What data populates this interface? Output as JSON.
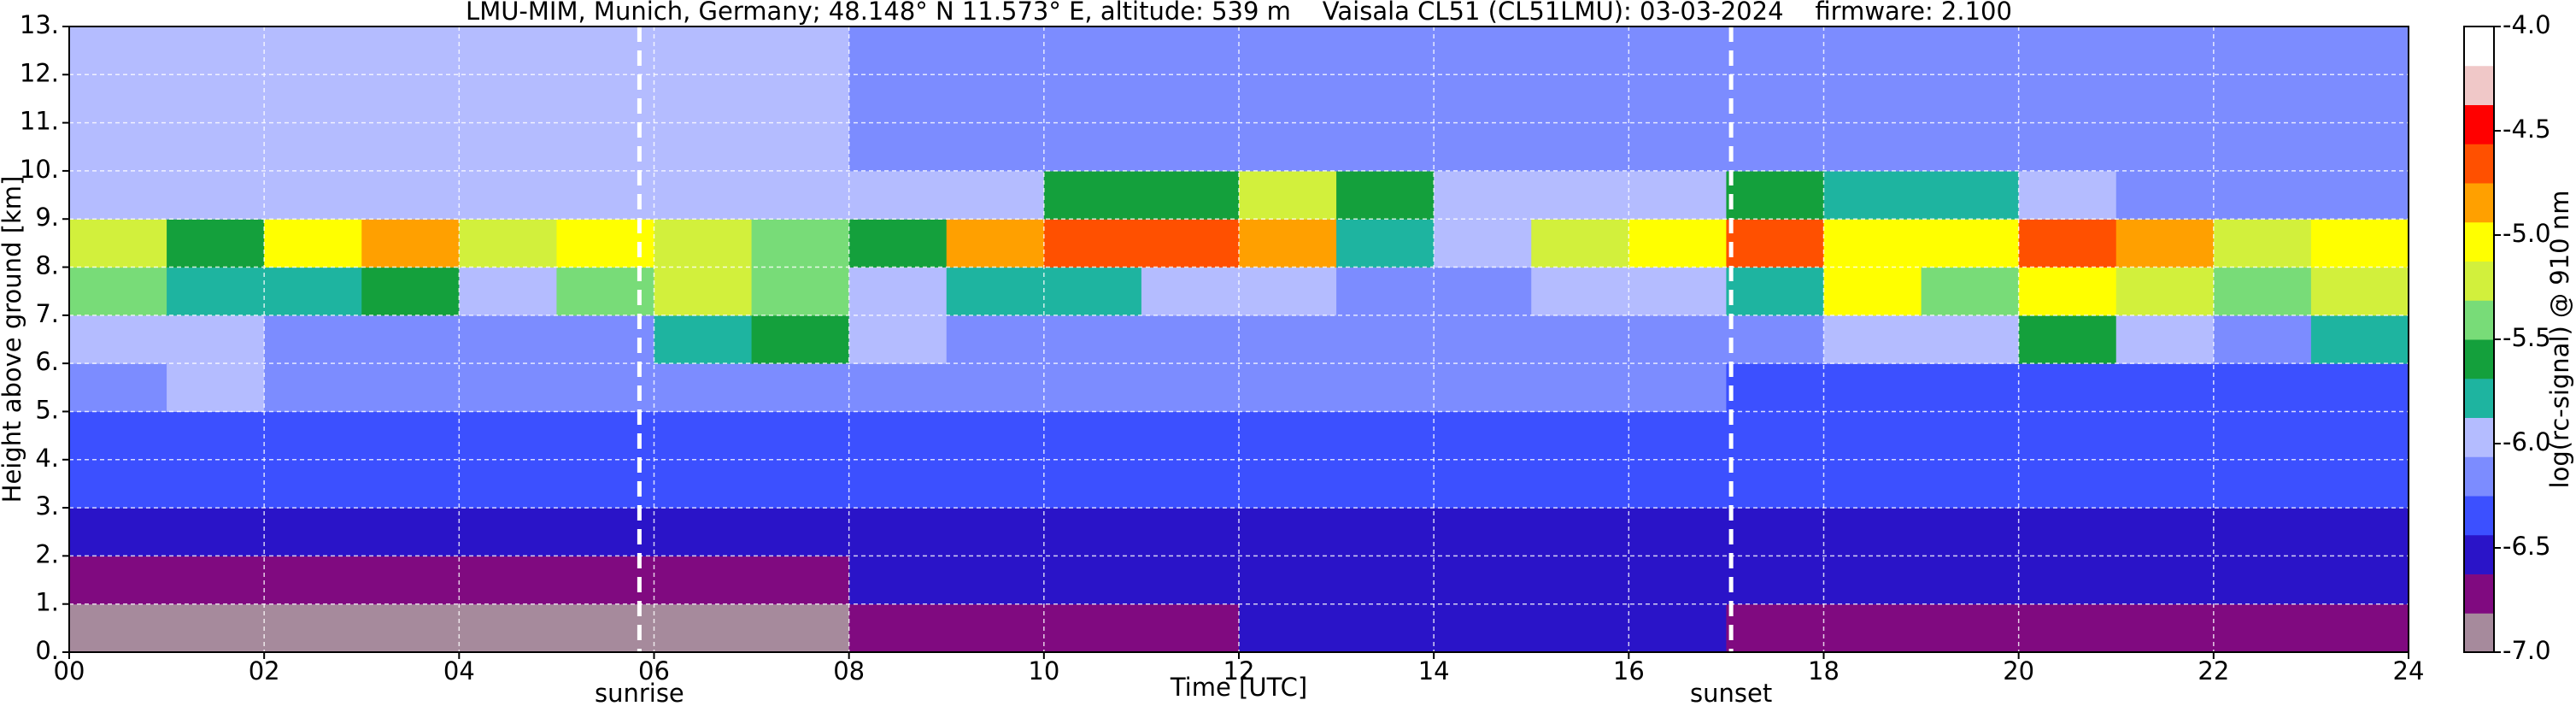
{
  "chart_data": {
    "type": "heatmap",
    "title": "LMU-MIM, Munich, Germany; 48.148° N 11.573° E, altitude: 539 m    Vaisala CL51 (CL51LMU): 03-03-2024    firmware: 2.100",
    "x_label": "Time [UTC]",
    "y_label": "Height above ground [km]",
    "colorbar_label": "log(rc-signal) @ 910 nm",
    "x": [
      0,
      1,
      2,
      3,
      4,
      5,
      6,
      7,
      8,
      9,
      10,
      11,
      12,
      13,
      14,
      15,
      16,
      17,
      18,
      19,
      20,
      21,
      22,
      23,
      24
    ],
    "y": [
      0,
      1,
      2,
      3,
      4,
      5,
      6,
      7,
      8,
      9,
      10,
      11,
      12,
      13
    ],
    "z": [
      [
        -6.9,
        -6.9,
        -6.9,
        -6.9,
        -6.9,
        -6.9,
        -6.9,
        -6.9,
        -6.8,
        -6.8,
        -6.8,
        -6.8,
        -6.6,
        -6.6,
        -6.6,
        -6.6,
        -6.6,
        -6.7,
        -6.7,
        -6.7,
        -6.7,
        -6.7,
        -6.7,
        -6.7
      ],
      [
        -6.7,
        -6.7,
        -6.7,
        -6.7,
        -6.7,
        -6.7,
        -6.7,
        -6.7,
        -6.5,
        -6.5,
        -6.5,
        -6.5,
        -6.5,
        -6.5,
        -6.5,
        -6.5,
        -6.5,
        -6.6,
        -6.6,
        -6.6,
        -6.6,
        -6.6,
        -6.6,
        -6.6
      ],
      [
        -6.5,
        -6.5,
        -6.5,
        -6.5,
        -6.5,
        -6.5,
        -6.5,
        -6.5,
        -6.5,
        -6.5,
        -6.5,
        -6.5,
        -6.5,
        -6.5,
        -6.5,
        -6.5,
        -6.5,
        -6.5,
        -6.5,
        -6.5,
        -6.5,
        -6.5,
        -6.5,
        -6.5
      ],
      [
        -6.4,
        -6.4,
        -6.4,
        -6.4,
        -6.4,
        -6.4,
        -6.4,
        -6.4,
        -6.4,
        -6.4,
        -6.4,
        -6.4,
        -6.4,
        -6.4,
        -6.4,
        -6.4,
        -6.4,
        -6.4,
        -6.4,
        -6.4,
        -6.4,
        -6.4,
        -6.4,
        -6.4
      ],
      [
        -6.3,
        -6.3,
        -6.3,
        -6.3,
        -6.3,
        -6.3,
        -6.3,
        -6.3,
        -6.3,
        -6.3,
        -6.3,
        -6.3,
        -6.3,
        -6.3,
        -6.3,
        -6.3,
        -6.3,
        -6.4,
        -6.4,
        -6.4,
        -6.4,
        -6.4,
        -6.4,
        -6.4
      ],
      [
        -6.2,
        -6.0,
        -6.2,
        -6.2,
        -6.2,
        -6.2,
        -6.2,
        -6.2,
        -6.2,
        -6.2,
        -6.2,
        -6.2,
        -6.2,
        -6.2,
        -6.2,
        -6.2,
        -6.2,
        -6.3,
        -6.3,
        -6.3,
        -6.3,
        -6.3,
        -6.3,
        -6.3
      ],
      [
        -6.0,
        -6.0,
        -6.1,
        -6.1,
        -6.1,
        -6.1,
        -5.7,
        -5.6,
        -6.0,
        -6.1,
        -6.1,
        -6.1,
        -6.1,
        -6.1,
        -6.1,
        -6.1,
        -6.1,
        -6.1,
        -6.0,
        -6.0,
        -5.6,
        -6.0,
        -6.1,
        -5.8
      ],
      [
        -5.4,
        -5.8,
        -5.8,
        -5.6,
        -6.0,
        -5.4,
        -5.3,
        -5.5,
        -5.9,
        -5.7,
        -5.8,
        -6.0,
        -6.0,
        -6.1,
        -6.1,
        -6.0,
        -6.0,
        -5.8,
        -5.1,
        -5.5,
        -5.0,
        -5.2,
        -5.5,
        -5.2
      ],
      [
        -5.2,
        -5.6,
        -5.0,
        -4.8,
        -5.3,
        -5.0,
        -5.2,
        -5.4,
        -5.6,
        -4.9,
        -4.6,
        -4.6,
        -4.9,
        -5.8,
        -5.9,
        -5.2,
        -5.0,
        -4.7,
        -5.0,
        -5.0,
        -4.7,
        -4.8,
        -5.3,
        -5.1
      ],
      [
        -5.9,
        -5.9,
        -5.9,
        -5.9,
        -5.9,
        -5.9,
        -5.9,
        -6.0,
        -6.0,
        -5.9,
        -5.6,
        -5.6,
        -5.3,
        -5.6,
        -6.0,
        -6.0,
        -6.0,
        -5.6,
        -5.7,
        -5.8,
        -6.0,
        -6.1,
        -6.1,
        -6.1
      ],
      [
        -6.0,
        -6.0,
        -6.0,
        -6.0,
        -6.0,
        -6.0,
        -6.0,
        -6.0,
        -6.1,
        -6.1,
        -6.1,
        -6.1,
        -6.1,
        -6.1,
        -6.1,
        -6.1,
        -6.1,
        -6.2,
        -6.2,
        -6.2,
        -6.2,
        -6.2,
        -6.2,
        -6.2
      ],
      [
        -6.0,
        -6.0,
        -6.0,
        -6.0,
        -6.0,
        -6.0,
        -6.0,
        -6.0,
        -6.1,
        -6.1,
        -6.1,
        -6.1,
        -6.1,
        -6.1,
        -6.1,
        -6.1,
        -6.1,
        -6.2,
        -6.2,
        -6.2,
        -6.2,
        -6.2,
        -6.2,
        -6.2
      ],
      [
        -6.0,
        -6.0,
        -6.0,
        -6.0,
        -6.0,
        -6.0,
        -6.0,
        -6.0,
        -6.1,
        -6.1,
        -6.1,
        -6.1,
        -6.1,
        -6.1,
        -6.1,
        -6.1,
        -6.1,
        -6.2,
        -6.2,
        -6.2,
        -6.2,
        -6.2,
        -6.2,
        -6.2
      ]
    ],
    "xlim": [
      0,
      24
    ],
    "ylim": [
      0,
      13
    ],
    "zlim": [
      -7,
      -4
    ],
    "xticks": [
      {
        "value": 0,
        "label": "00"
      },
      {
        "value": 2,
        "label": "02"
      },
      {
        "value": 4,
        "label": "04"
      },
      {
        "value": 6,
        "label": "06"
      },
      {
        "value": 8,
        "label": "08"
      },
      10,
      12,
      14,
      16,
      18,
      20,
      22,
      24
    ],
    "yticks": [
      {
        "value": 0,
        "label": "0."
      },
      {
        "value": 1,
        "label": "1."
      },
      {
        "value": 2,
        "label": "2."
      },
      {
        "value": 3,
        "label": "3."
      },
      {
        "value": 4,
        "label": "4."
      },
      {
        "value": 5,
        "label": "5."
      },
      {
        "value": 6,
        "label": "6."
      },
      {
        "value": 7,
        "label": "7."
      },
      {
        "value": 8,
        "label": "8."
      },
      {
        "value": 9,
        "label": "9."
      },
      {
        "value": 10,
        "label": "10."
      },
      {
        "value": 11,
        "label": "11."
      },
      {
        "value": 12,
        "label": "12."
      },
      {
        "value": 13,
        "label": "13."
      }
    ],
    "zticks": [
      {
        "value": -7,
        "label": "-7.0"
      },
      {
        "value": -6.5,
        "label": "-6.5"
      },
      {
        "value": -6,
        "label": "-6.0"
      },
      {
        "value": -5.5,
        "label": "-5.5"
      },
      {
        "value": -5,
        "label": "-5.0"
      },
      {
        "value": -4.5,
        "label": "-4.5"
      },
      {
        "value": -4,
        "label": "-4.0"
      }
    ],
    "colorscale": [
      "#a68a9c",
      "#800a80",
      "#2a14c8",
      "#3c50ff",
      "#7c8cff",
      "#b4bcff",
      "#1eb4a0",
      "#14a03c",
      "#78dc78",
      "#d2f03c",
      "#ffff00",
      "#ffa000",
      "#ff5000",
      "#ff0000",
      "#f0c8c8",
      "#ffffff"
    ],
    "grid": true,
    "annotations": [
      {
        "text": "sunrise",
        "x": 5.85
      },
      {
        "text": "sunset",
        "x": 17.05
      }
    ]
  }
}
